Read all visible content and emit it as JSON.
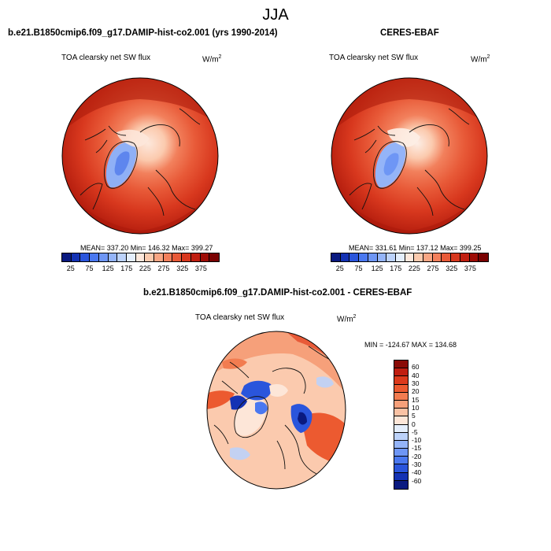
{
  "page_title": "JJA",
  "panels": {
    "model": {
      "header": "b.e21.B1850cmip6.f09_g17.DAMIP-hist-co2.001 (yrs 1990-2014)",
      "variable": "TOA clearsky net SW flux",
      "units": "W/m",
      "units_exp": "2",
      "stats": "MEAN= 337.20  Min= 146.32  Max= 399.27"
    },
    "obs": {
      "header": "CERES-EBAF",
      "variable": "TOA clearsky net SW flux",
      "units": "W/m",
      "units_exp": "2",
      "stats": "MEAN= 331.61  Min= 137.12  Max= 399.25"
    },
    "diff": {
      "header": "b.e21.B1850cmip6.f09_g17.DAMIP-hist-co2.001 - CERES-EBAF",
      "variable": "TOA clearsky net SW flux",
      "units": "W/m",
      "units_exp": "2",
      "stats": "MIN = -124.67  MAX = 134.68"
    }
  },
  "colorbar_abs": {
    "ticks": [
      "25",
      "75",
      "125",
      "175",
      "225",
      "275",
      "325",
      "375"
    ],
    "colors": [
      "#0a1a80",
      "#1432b4",
      "#2a55dc",
      "#4a78f0",
      "#6e96f5",
      "#94b4f8",
      "#bcd2fa",
      "#e4eefc",
      "#fde8dc",
      "#fbcaae",
      "#f8a684",
      "#f2805c",
      "#e85a38",
      "#d8381e",
      "#c01e10",
      "#9e0c06",
      "#7a0202"
    ]
  },
  "colorbar_diff": {
    "ticks": [
      "60",
      "40",
      "30",
      "20",
      "15",
      "10",
      "5",
      "0",
      "-5",
      "-10",
      "-15",
      "-20",
      "-30",
      "-40",
      "-60"
    ],
    "colors": [
      "#8a0a06",
      "#c01e10",
      "#dc3a1c",
      "#ec5a30",
      "#f27c50",
      "#f6a07a",
      "#fac2a4",
      "#fde6d8",
      "#e4eefc",
      "#bcd2fa",
      "#94b4f8",
      "#6e96f5",
      "#4a78f0",
      "#2a55dc",
      "#1432b4",
      "#0a1a80"
    ]
  }
}
